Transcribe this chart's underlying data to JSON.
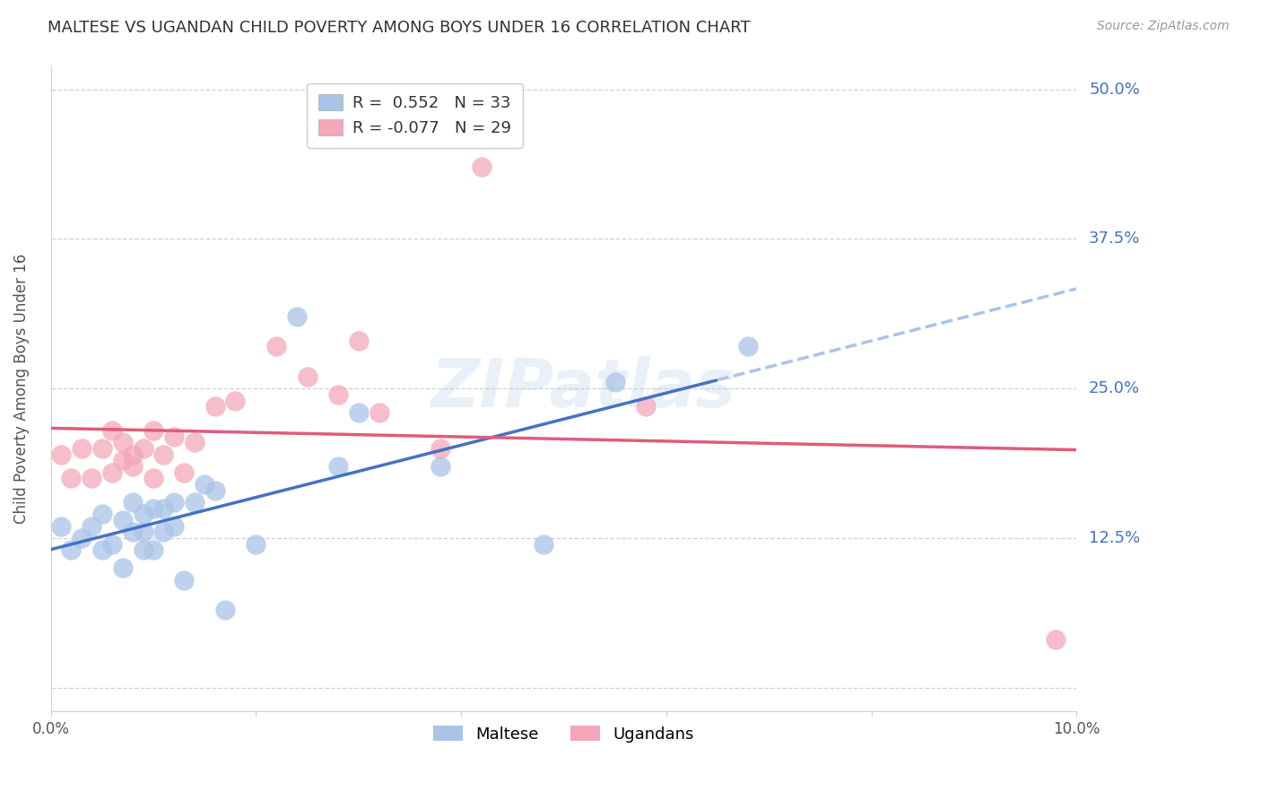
{
  "title": "MALTESE VS UGANDAN CHILD POVERTY AMONG BOYS UNDER 16 CORRELATION CHART",
  "source": "Source: ZipAtlas.com",
  "ylabel": "Child Poverty Among Boys Under 16",
  "xlim": [
    0.0,
    0.1
  ],
  "ylim": [
    -0.02,
    0.52
  ],
  "plot_ylim": [
    0.0,
    0.5
  ],
  "yticks": [
    0.0,
    0.125,
    0.25,
    0.375,
    0.5
  ],
  "ytick_labels": [
    "",
    "12.5%",
    "25.0%",
    "37.5%",
    "50.0%"
  ],
  "xticks": [
    0.0,
    0.02,
    0.04,
    0.06,
    0.08,
    0.1
  ],
  "xtick_labels": [
    "0.0%",
    "",
    "",
    "",
    "",
    "10.0%"
  ],
  "maltese_color": "#aac4e8",
  "ugandan_color": "#f4a7b9",
  "maltese_line_color": "#4472c4",
  "ugandan_line_color": "#e05c7a",
  "dashed_line_color": "#aac4e8",
  "legend_maltese_R": " 0.552",
  "legend_maltese_N": "33",
  "legend_ugandan_R": "-0.077",
  "legend_ugandan_N": "29",
  "maltese_x": [
    0.001,
    0.002,
    0.003,
    0.004,
    0.005,
    0.005,
    0.006,
    0.007,
    0.007,
    0.008,
    0.008,
    0.009,
    0.009,
    0.009,
    0.01,
    0.01,
    0.011,
    0.011,
    0.012,
    0.012,
    0.013,
    0.014,
    0.015,
    0.016,
    0.017,
    0.02,
    0.024,
    0.028,
    0.03,
    0.038,
    0.048,
    0.055,
    0.068
  ],
  "maltese_y": [
    0.135,
    0.115,
    0.125,
    0.135,
    0.115,
    0.145,
    0.12,
    0.1,
    0.14,
    0.13,
    0.155,
    0.115,
    0.13,
    0.145,
    0.115,
    0.15,
    0.13,
    0.15,
    0.135,
    0.155,
    0.09,
    0.155,
    0.17,
    0.165,
    0.065,
    0.12,
    0.31,
    0.185,
    0.23,
    0.185,
    0.12,
    0.255,
    0.285
  ],
  "ugandan_x": [
    0.001,
    0.002,
    0.003,
    0.004,
    0.005,
    0.006,
    0.006,
    0.007,
    0.007,
    0.008,
    0.008,
    0.009,
    0.01,
    0.01,
    0.011,
    0.012,
    0.013,
    0.014,
    0.016,
    0.018,
    0.022,
    0.025,
    0.028,
    0.03,
    0.032,
    0.038,
    0.042,
    0.058,
    0.098
  ],
  "ugandan_y": [
    0.195,
    0.175,
    0.2,
    0.175,
    0.2,
    0.18,
    0.215,
    0.19,
    0.205,
    0.195,
    0.185,
    0.2,
    0.175,
    0.215,
    0.195,
    0.21,
    0.18,
    0.205,
    0.235,
    0.24,
    0.285,
    0.26,
    0.245,
    0.29,
    0.23,
    0.2,
    0.435,
    0.235,
    0.04
  ],
  "watermark": "ZIPatlas",
  "background_color": "#ffffff",
  "grid_color": "#d0d0d0",
  "title_color": "#333333",
  "source_color": "#999999",
  "ylabel_color": "#555555",
  "tick_color": "#555555"
}
